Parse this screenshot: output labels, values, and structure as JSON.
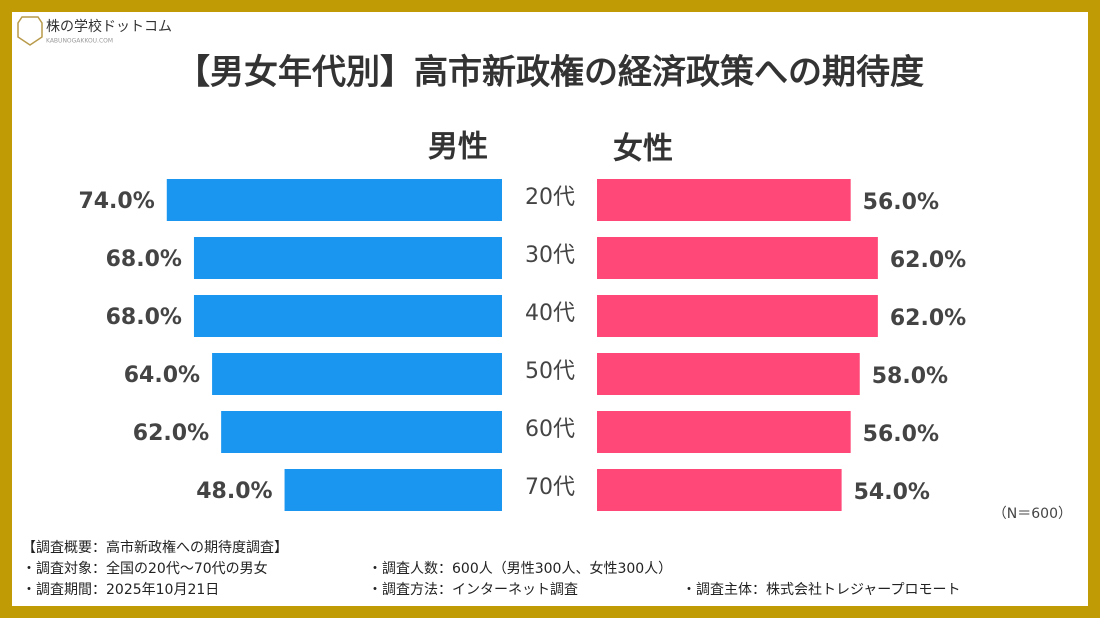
{
  "logo": {
    "name": "株の学校ドットコム",
    "sub": "KABUNOGAKKOU.COM"
  },
  "chart_data": {
    "type": "butterfly",
    "title": "【男女年代別】高市新政権の経済政策への期待度",
    "categories": [
      "20代",
      "30代",
      "40代",
      "50代",
      "60代",
      "70代"
    ],
    "series": [
      {
        "name": "男性",
        "color": "#1a96f0",
        "values": [
          74,
          68,
          68,
          64,
          62,
          48
        ],
        "value_labels": [
          "74.0%",
          "68.0%",
          "68.0%",
          "64.0%",
          "62.0%",
          "48.0%"
        ]
      },
      {
        "name": "女性",
        "color": "#ff4778",
        "values": [
          56,
          62,
          62,
          58,
          56,
          54
        ],
        "value_labels": [
          "56.0%",
          "62.0%",
          "62.0%",
          "58.0%",
          "56.0%",
          "54.0%"
        ]
      }
    ],
    "note": "（N＝600）"
  },
  "footer": {
    "heading": "【調査概要：高市新政権への期待度調査】",
    "items": [
      "・調査対象：全国の20代～70代の男女",
      "・調査人数：600人（男性300人、女性300人）",
      "・調査期間：2025年10月21日",
      "・調査方法：インターネット調査",
      "・調査主体：株式会社トレジャープロモート"
    ]
  }
}
